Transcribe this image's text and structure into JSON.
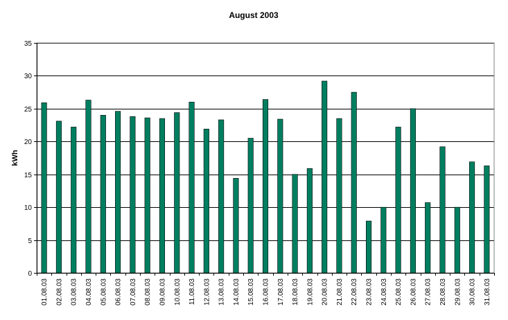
{
  "chart_data": {
    "type": "bar",
    "title": "August 2003",
    "xlabel": "",
    "ylabel": "kWh",
    "ylim": [
      0,
      35
    ],
    "yticks": [
      0,
      5,
      10,
      15,
      20,
      25,
      30,
      35
    ],
    "grid": true,
    "legend": "none",
    "bar_color": "#007f60",
    "categories": [
      "01.08.03",
      "02.08.03",
      "03.08.03",
      "04.08.03",
      "05.08.03",
      "06.08.03",
      "07.08.03",
      "08.08.03",
      "09.08.03",
      "10.08.03",
      "11.08.03",
      "12.08.03",
      "13.08.03",
      "14.08.03",
      "15.08.03",
      "16.08.03",
      "17.08.03",
      "18.08.03",
      "19.08.03",
      "20.08.03",
      "21.08.03",
      "22.08.03",
      "23.08.03",
      "24.08.03",
      "25.08.03",
      "26.08.03",
      "27.08.03",
      "28.08.03",
      "29.08.03",
      "30.08.03",
      "31.08.03"
    ],
    "values": [
      25.9,
      23.1,
      22.2,
      26.3,
      24.0,
      24.6,
      23.8,
      23.6,
      23.5,
      24.4,
      26.0,
      21.9,
      23.3,
      14.4,
      20.5,
      26.4,
      23.4,
      15.0,
      15.9,
      29.2,
      23.5,
      27.5,
      7.9,
      10.0,
      22.2,
      25.0,
      10.7,
      19.2,
      10.0,
      16.9,
      16.3
    ]
  }
}
